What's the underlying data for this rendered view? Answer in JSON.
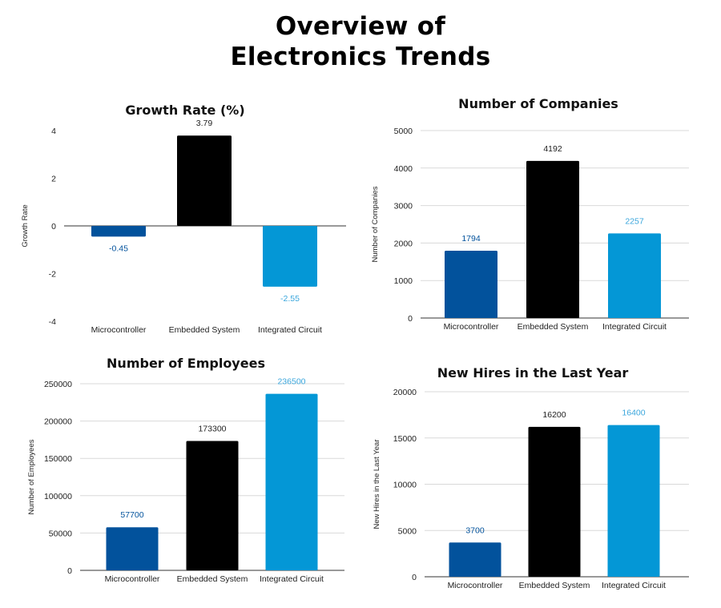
{
  "page": {
    "title_line1": "Overview of",
    "title_line2": "Electronics Trends"
  },
  "colors": {
    "Microcontroller": "#02529c",
    "Embedded System": "#000000",
    "Integrated Circuit": "#0497d6",
    "label_Microcontroller": "#02529c",
    "label_Embedded System": "#222222",
    "label_Integrated Circuit": "#3aa6dc"
  },
  "chart_data": [
    {
      "id": "growth-rate",
      "type": "bar",
      "title": "Growth Rate (%)",
      "xlabel": "",
      "ylabel": "Growth Rate",
      "categories": [
        "Microcontroller",
        "Embedded System",
        "Integrated Circuit"
      ],
      "values": [
        -0.45,
        3.79,
        -2.55
      ],
      "data_labels": [
        "-0.45",
        "3.79",
        "-2.55"
      ],
      "ylim": [
        -4,
        4
      ],
      "yticks": [
        4,
        2,
        0,
        -2,
        -4
      ],
      "grid": false
    },
    {
      "id": "companies",
      "type": "bar",
      "title": "Number of Companies",
      "xlabel": "",
      "ylabel": "Number of Companies",
      "categories": [
        "Microcontroller",
        "Embedded System",
        "Integrated Circuit"
      ],
      "values": [
        1794,
        4192,
        2257
      ],
      "data_labels": [
        "1794",
        "4192",
        "2257"
      ],
      "ylim": [
        0,
        5000
      ],
      "yticks": [
        0,
        1000,
        2000,
        3000,
        4000,
        5000
      ],
      "grid": true
    },
    {
      "id": "employees",
      "type": "bar",
      "title": "Number of Employees",
      "xlabel": "",
      "ylabel": "Number of Employees",
      "categories": [
        "Microcontroller",
        "Embedded System",
        "Integrated Circuit"
      ],
      "values": [
        57700,
        173300,
        236500
      ],
      "data_labels": [
        "57700",
        "173300",
        "236500"
      ],
      "ylim": [
        0,
        250000
      ],
      "yticks": [
        0,
        50000,
        100000,
        150000,
        200000,
        250000
      ],
      "grid": true
    },
    {
      "id": "new-hires",
      "type": "bar",
      "title": "New Hires in the Last Year",
      "xlabel": "",
      "ylabel": "New Hires in the Last Year",
      "categories": [
        "Microcontroller",
        "Embedded System",
        "Integrated Circuit"
      ],
      "values": [
        3700,
        16200,
        16400
      ],
      "data_labels": [
        "3700",
        "16200",
        "16400"
      ],
      "ylim": [
        0,
        20000
      ],
      "yticks": [
        0,
        5000,
        10000,
        15000,
        20000
      ],
      "grid": true
    }
  ]
}
